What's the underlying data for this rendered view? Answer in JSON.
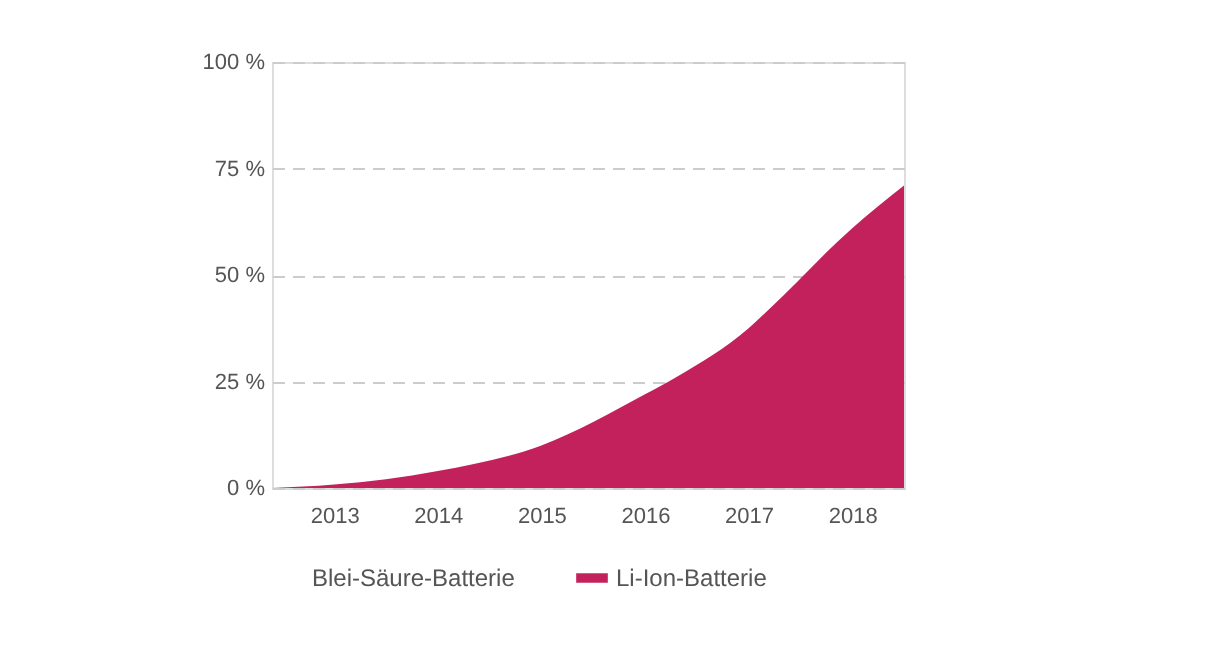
{
  "chart_data": {
    "type": "area",
    "x": [
      2012.4,
      2013.0,
      2014.0,
      2015.0,
      2016.0,
      2016.3,
      2017.0,
      2017.2,
      2018.0,
      2018.5
    ],
    "series": [
      {
        "name": "Blei-Säure-Batterie",
        "values": [
          null,
          null,
          null,
          null,
          null,
          null,
          null,
          null,
          null,
          null
        ]
      },
      {
        "name": "Li-Ion-Batterie",
        "color": "#c2215c",
        "values": [
          0,
          0.8,
          4,
          10,
          22,
          26,
          37.5,
          42,
          61,
          71
        ]
      }
    ],
    "xlim": [
      2012.4,
      2018.5
    ],
    "xticks": [
      2013,
      2014,
      2015,
      2016,
      2017,
      2018
    ],
    "ylim": [
      0,
      100
    ],
    "yticks": [
      {
        "value": 0,
        "label": "0 %"
      },
      {
        "value": 25,
        "label": "25 %"
      },
      {
        "value": 50,
        "label": "50 %"
      },
      {
        "value": 75,
        "label": "75 %"
      },
      {
        "value": 100,
        "label": "100 %"
      }
    ],
    "grid": "y",
    "legend": "bottom"
  }
}
